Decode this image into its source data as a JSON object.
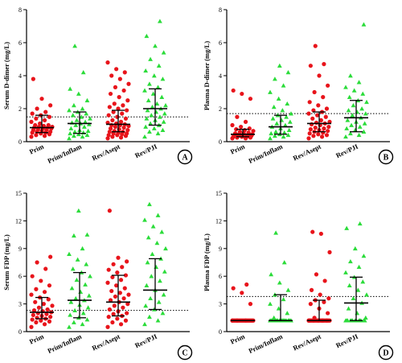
{
  "colors": {
    "red": "#e8141b",
    "green": "#2bdc3a",
    "axis": "#000000"
  },
  "chart_data": [
    {
      "panel_label": "A",
      "type": "scatter",
      "ylabel": "Serum D-dimer (mg/L)",
      "categories": [
        "Prim",
        "Prim/Inflam",
        "Rev/Asept",
        "Rev/PJI"
      ],
      "ylim": [
        0,
        8
      ],
      "yticks": [
        0,
        2,
        4,
        6,
        8
      ],
      "threshold": 1.5,
      "series": [
        {
          "marker": "circle",
          "color": "red",
          "median": 0.85,
          "q1": 0.55,
          "q3": 1.6,
          "values": [
            0.3,
            0.35,
            0.4,
            0.45,
            0.5,
            0.55,
            0.55,
            0.6,
            0.6,
            0.65,
            0.7,
            0.7,
            0.75,
            0.8,
            0.8,
            0.85,
            0.85,
            0.9,
            0.9,
            0.95,
            1.0,
            1.0,
            1.1,
            1.2,
            1.3,
            1.4,
            1.5,
            1.6,
            1.7,
            1.8,
            2.0,
            2.2,
            2.6,
            3.8
          ]
        },
        {
          "marker": "triangle",
          "color": "green",
          "median": 1.1,
          "q1": 0.5,
          "q3": 1.8,
          "values": [
            0.2,
            0.3,
            0.35,
            0.4,
            0.45,
            0.5,
            0.55,
            0.6,
            0.65,
            0.7,
            0.8,
            0.9,
            1.0,
            1.05,
            1.1,
            1.15,
            1.2,
            1.3,
            1.4,
            1.5,
            1.6,
            1.7,
            1.8,
            1.9,
            2.0,
            2.2,
            2.5,
            2.9,
            3.2,
            4.2,
            5.8
          ]
        },
        {
          "marker": "circle",
          "color": "red",
          "median": 1.05,
          "q1": 0.6,
          "q3": 1.9,
          "values": [
            0.2,
            0.25,
            0.3,
            0.35,
            0.4,
            0.4,
            0.45,
            0.5,
            0.5,
            0.55,
            0.6,
            0.6,
            0.65,
            0.7,
            0.75,
            0.8,
            0.85,
            0.9,
            0.95,
            1.0,
            1.0,
            1.05,
            1.1,
            1.15,
            1.2,
            1.3,
            1.4,
            1.5,
            1.6,
            1.7,
            1.8,
            1.9,
            2.0,
            2.1,
            2.2,
            2.3,
            2.5,
            2.7,
            2.9,
            3.1,
            3.3,
            3.5,
            3.8,
            4.0,
            4.2,
            4.4,
            4.8
          ]
        },
        {
          "marker": "triangle",
          "color": "green",
          "median": 2.0,
          "q1": 1.0,
          "q3": 3.2,
          "values": [
            0.3,
            0.5,
            0.6,
            0.7,
            0.8,
            0.9,
            1.0,
            1.1,
            1.2,
            1.3,
            1.4,
            1.5,
            1.6,
            1.7,
            1.8,
            1.9,
            2.0,
            2.1,
            2.2,
            2.3,
            2.5,
            2.7,
            2.9,
            3.1,
            3.3,
            3.5,
            3.8,
            4.0,
            4.3,
            4.6,
            5.0,
            5.4,
            5.8,
            6.4,
            7.3
          ]
        }
      ]
    },
    {
      "panel_label": "B",
      "type": "scatter",
      "ylabel": "Plasma D-dimer (mg/L)",
      "categories": [
        "Prim",
        "Prim/Inflam",
        "Rev/Asept",
        "Rev/PJI"
      ],
      "ylim": [
        0,
        8
      ],
      "yticks": [
        0,
        2,
        4,
        6,
        8
      ],
      "threshold": 1.7,
      "series": [
        {
          "marker": "circle",
          "color": "red",
          "median": 0.45,
          "q1": 0.3,
          "q3": 0.75,
          "values": [
            0.2,
            0.2,
            0.25,
            0.25,
            0.3,
            0.3,
            0.3,
            0.35,
            0.35,
            0.4,
            0.4,
            0.4,
            0.45,
            0.45,
            0.5,
            0.5,
            0.55,
            0.6,
            0.65,
            0.7,
            0.75,
            0.8,
            0.9,
            1.0,
            1.2,
            1.5,
            2.6,
            2.9,
            3.1
          ]
        },
        {
          "marker": "triangle",
          "color": "green",
          "median": 0.9,
          "q1": 0.45,
          "q3": 1.6,
          "values": [
            0.2,
            0.3,
            0.35,
            0.4,
            0.45,
            0.5,
            0.55,
            0.6,
            0.7,
            0.8,
            0.9,
            1.0,
            1.1,
            1.2,
            1.3,
            1.4,
            1.5,
            1.6,
            1.7,
            1.9,
            2.1,
            2.3,
            2.6,
            3.0,
            3.4,
            3.8,
            4.2,
            4.6
          ]
        },
        {
          "marker": "circle",
          "color": "red",
          "median": 1.1,
          "q1": 0.6,
          "q3": 1.8,
          "values": [
            0.2,
            0.3,
            0.35,
            0.4,
            0.45,
            0.5,
            0.55,
            0.6,
            0.65,
            0.7,
            0.75,
            0.8,
            0.85,
            0.9,
            1.0,
            1.05,
            1.1,
            1.15,
            1.2,
            1.3,
            1.4,
            1.5,
            1.6,
            1.7,
            1.8,
            1.9,
            2.0,
            2.2,
            2.4,
            2.7,
            3.0,
            3.4,
            4.0,
            4.6,
            4.7,
            5.8
          ]
        },
        {
          "marker": "triangle",
          "color": "green",
          "median": 1.45,
          "q1": 0.6,
          "q3": 2.5,
          "values": [
            0.3,
            0.4,
            0.5,
            0.6,
            0.7,
            0.8,
            0.9,
            1.0,
            1.1,
            1.2,
            1.3,
            1.45,
            1.6,
            1.7,
            1.8,
            1.9,
            2.0,
            2.2,
            2.4,
            2.5,
            2.7,
            2.9,
            3.1,
            3.3,
            3.6,
            4.0,
            7.1
          ]
        }
      ]
    },
    {
      "panel_label": "C",
      "type": "scatter",
      "ylabel": "Serum FDP (mg/L)",
      "categories": [
        "Prim",
        "Prim/Inflam",
        "Rev/Asept",
        "Rev/PJI"
      ],
      "ylim": [
        0,
        15
      ],
      "yticks": [
        0,
        3,
        6,
        9,
        12,
        15
      ],
      "threshold": 2.3,
      "series": [
        {
          "marker": "circle",
          "color": "red",
          "median": 2.1,
          "q1": 1.4,
          "q3": 3.7,
          "values": [
            0.5,
            0.8,
            1.0,
            1.1,
            1.2,
            1.3,
            1.4,
            1.5,
            1.6,
            1.7,
            1.8,
            1.9,
            2.0,
            2.1,
            2.2,
            2.3,
            2.4,
            2.6,
            2.8,
            3.0,
            3.2,
            3.5,
            3.7,
            4.0,
            4.3,
            4.6,
            5.0,
            5.5,
            6.0,
            6.8,
            7.5,
            8.1
          ]
        },
        {
          "marker": "triangle",
          "color": "green",
          "median": 3.4,
          "q1": 1.5,
          "q3": 6.4,
          "values": [
            0.5,
            0.8,
            1.0,
            1.3,
            1.5,
            1.8,
            2.0,
            2.3,
            2.6,
            2.9,
            3.2,
            3.4,
            3.6,
            3.9,
            4.3,
            4.7,
            5.1,
            5.6,
            6.0,
            6.4,
            6.8,
            7.3,
            7.8,
            8.4,
            9.0,
            10.4,
            10.5,
            13.1
          ]
        },
        {
          "marker": "circle",
          "color": "red",
          "median": 3.2,
          "q1": 1.7,
          "q3": 6.1,
          "values": [
            0.5,
            0.8,
            1.0,
            1.2,
            1.4,
            1.6,
            1.7,
            1.9,
            2.0,
            2.2,
            2.4,
            2.6,
            2.8,
            3.0,
            3.2,
            3.4,
            3.6,
            3.8,
            4.0,
            4.2,
            4.4,
            4.7,
            5.0,
            5.3,
            5.6,
            5.9,
            6.1,
            6.4,
            6.7,
            7.0,
            7.3,
            7.6,
            8.0,
            13.1
          ]
        },
        {
          "marker": "triangle",
          "color": "green",
          "median": 4.5,
          "q1": 2.4,
          "q3": 7.9,
          "values": [
            0.8,
            1.2,
            1.6,
            2.0,
            2.4,
            2.8,
            3.2,
            3.6,
            4.0,
            4.5,
            5.0,
            5.5,
            6.0,
            6.5,
            7.0,
            7.5,
            7.9,
            8.4,
            9.0,
            9.6,
            10.2,
            10.8,
            11.4,
            12.1,
            12.6,
            13.8
          ]
        }
      ]
    },
    {
      "panel_label": "D",
      "type": "scatter",
      "ylabel": "Plasma FDP (mg/L)",
      "categories": [
        "Prim",
        "Prim/Inflam",
        "Rev/Asept",
        "Rev/PJI"
      ],
      "ylim": [
        0,
        15
      ],
      "yticks": [
        0,
        3,
        6,
        9,
        12,
        15
      ],
      "threshold": 3.8,
      "series": [
        {
          "marker": "circle",
          "color": "red",
          "median": 1.2,
          "q1": 1.2,
          "q3": 1.2,
          "values": [
            1.2,
            1.2,
            1.2,
            1.2,
            1.2,
            1.2,
            1.2,
            1.2,
            1.2,
            1.2,
            1.2,
            1.2,
            1.2,
            1.2,
            1.2,
            1.2,
            1.2,
            1.2,
            1.2,
            1.2,
            1.2,
            1.2,
            1.2,
            1.2,
            1.2,
            1.2,
            3.0,
            4.2,
            4.7,
            5.1
          ]
        },
        {
          "marker": "triangle",
          "color": "green",
          "median": 1.2,
          "q1": 1.2,
          "q3": 4.0,
          "values": [
            1.2,
            1.2,
            1.2,
            1.2,
            1.2,
            1.2,
            1.2,
            1.2,
            1.2,
            1.2,
            1.2,
            1.2,
            1.2,
            1.2,
            1.2,
            1.2,
            1.2,
            1.2,
            1.2,
            1.2,
            1.5,
            2.0,
            2.5,
            3.0,
            3.5,
            4.0,
            4.5,
            5.3,
            6.2,
            7.5,
            10.7
          ]
        },
        {
          "marker": "circle",
          "color": "red",
          "median": 1.2,
          "q1": 1.2,
          "q3": 3.4,
          "values": [
            1.2,
            1.2,
            1.2,
            1.2,
            1.2,
            1.2,
            1.2,
            1.2,
            1.2,
            1.2,
            1.2,
            1.2,
            1.2,
            1.2,
            1.2,
            1.2,
            1.2,
            1.2,
            1.2,
            1.2,
            1.2,
            1.2,
            1.2,
            1.2,
            1.2,
            1.2,
            1.2,
            1.2,
            1.2,
            1.2,
            1.5,
            2.0,
            2.5,
            3.0,
            3.2,
            3.4,
            3.6,
            4.0,
            4.5,
            5.5,
            6.2,
            8.6,
            10.6,
            10.8
          ]
        },
        {
          "marker": "triangle",
          "color": "green",
          "median": 3.1,
          "q1": 1.2,
          "q3": 5.9,
          "values": [
            1.2,
            1.2,
            1.2,
            1.2,
            1.2,
            1.2,
            1.2,
            1.2,
            1.2,
            1.2,
            1.2,
            1.2,
            1.2,
            1.5,
            2.0,
            2.5,
            3.1,
            3.6,
            4.0,
            4.5,
            5.0,
            5.4,
            5.9,
            6.4,
            7.0,
            7.6,
            8.2,
            9.0,
            11.2,
            11.7
          ]
        }
      ]
    }
  ]
}
